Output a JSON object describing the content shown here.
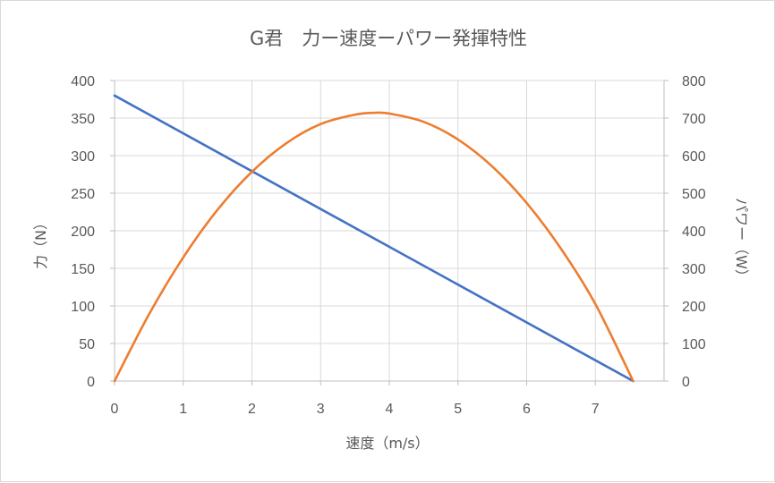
{
  "chart_data": {
    "type": "line",
    "title": "G君　力ー速度ーパワー発揮特性",
    "xlabel": "速度（m/s）",
    "ylabel": "力（N）",
    "y2label": "パワー（W）",
    "x_ticks": [
      "0",
      "1",
      "2",
      "3",
      "4",
      "5",
      "6",
      "7"
    ],
    "y_ticks": [
      "0",
      "50",
      "100",
      "150",
      "200",
      "250",
      "300",
      "350",
      "400"
    ],
    "y2_ticks": [
      "0",
      "100",
      "200",
      "300",
      "400",
      "500",
      "600",
      "700",
      "800"
    ],
    "xlim": [
      0,
      8
    ],
    "ylim": [
      0,
      400
    ],
    "y2lim": [
      0,
      800
    ],
    "grid": true,
    "legend": "none",
    "series": [
      {
        "axis": "left",
        "color": "#4472c4",
        "x": [
          0,
          7.55
        ],
        "values": [
          380,
          0
        ]
      },
      {
        "axis": "right",
        "color": "#ed7d31",
        "x": [
          0,
          0.5,
          1,
          1.5,
          2,
          2.5,
          3,
          3.5,
          3.78,
          4,
          4.5,
          5,
          5.5,
          6,
          6.5,
          7,
          7.55
        ],
        "values": [
          0,
          177,
          329,
          456,
          557,
          633,
          684,
          709,
          714,
          712,
          690,
          643,
          571,
          474,
          352,
          205,
          0
        ]
      }
    ]
  }
}
